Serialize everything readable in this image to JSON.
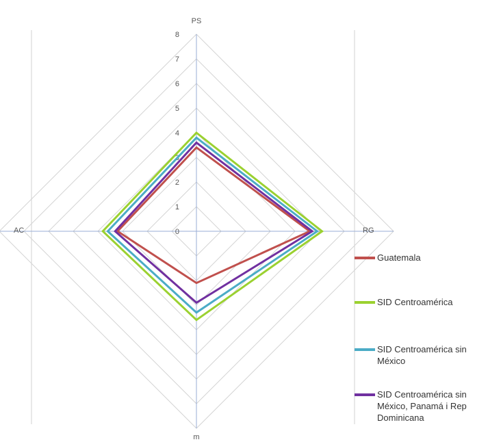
{
  "chart_data": {
    "type": "radar",
    "axes": [
      "PS",
      "RG",
      "m",
      "AC"
    ],
    "ticks": [
      "0",
      "1",
      "2",
      "3",
      "4",
      "5",
      "6",
      "7",
      "8"
    ],
    "rmax": 8,
    "series": [
      {
        "name": "Guatemala",
        "color": "#c0504d",
        "values": [
          3.4,
          4.6,
          2.1,
          3.2
        ]
      },
      {
        "name": "SID Centroamérica",
        "color": "#9bd130",
        "values": [
          4.0,
          5.1,
          3.6,
          3.8
        ]
      },
      {
        "name": "SID Centroamérica sin México",
        "color": "#4bacc6",
        "values": [
          3.8,
          4.9,
          3.3,
          3.6
        ]
      },
      {
        "name": "SID Centroamérica sin México, Panamá i Rep Dominicana",
        "color": "#7030a0",
        "values": [
          3.6,
          4.7,
          2.9,
          3.3
        ]
      }
    ]
  }
}
